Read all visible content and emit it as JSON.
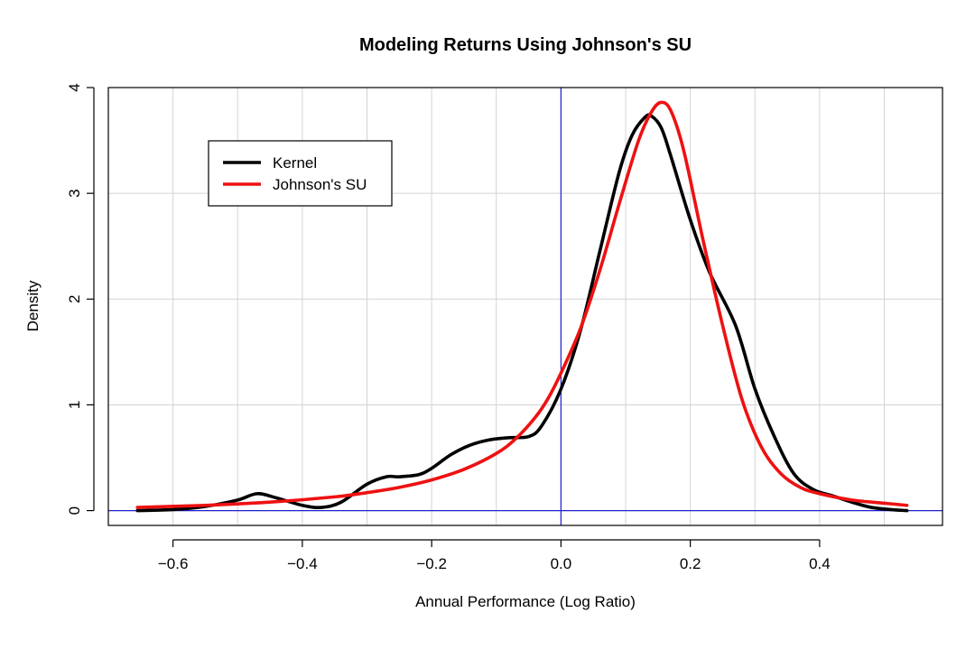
{
  "chart_data": {
    "type": "line",
    "title": "Modeling Returns Using Johnson's SU",
    "xlabel": "Annual Performance (Log Ratio)",
    "ylabel": "Density",
    "xlim": [
      -0.7,
      0.59
    ],
    "ylim": [
      -0.14,
      4.0
    ],
    "x_ticks": [
      -0.6,
      -0.4,
      -0.2,
      0.0,
      0.2,
      0.4
    ],
    "x_tick_labels": [
      "−0.6",
      "−0.4",
      "−0.2",
      "0.0",
      "0.2",
      "0.4"
    ],
    "y_ticks": [
      0,
      1,
      2,
      3,
      4
    ],
    "y_tick_labels": [
      "0",
      "1",
      "2",
      "3",
      "4"
    ],
    "x_grid": [
      -0.7,
      -0.6,
      -0.5,
      -0.4,
      -0.3,
      -0.2,
      -0.1,
      0.0,
      0.1,
      0.2,
      0.3,
      0.4,
      0.5
    ],
    "grid": true,
    "reference_lines": {
      "vertical_x": 0.0,
      "horizontal_y": 0.0,
      "color": "#2020d0"
    },
    "legend_position": "top-left",
    "series": [
      {
        "name": "Kernel",
        "color": "#000000",
        "x": [
          -0.655,
          -0.6,
          -0.55,
          -0.5,
          -0.47,
          -0.44,
          -0.4,
          -0.37,
          -0.34,
          -0.3,
          -0.27,
          -0.25,
          -0.22,
          -0.2,
          -0.17,
          -0.14,
          -0.11,
          -0.08,
          -0.05,
          -0.03,
          0.0,
          0.03,
          0.06,
          0.09,
          0.11,
          0.13,
          0.14,
          0.155,
          0.17,
          0.2,
          0.23,
          0.27,
          0.3,
          0.33,
          0.36,
          0.39,
          0.42,
          0.45,
          0.48,
          0.51,
          0.535
        ],
        "y": [
          0.0,
          0.01,
          0.04,
          0.1,
          0.16,
          0.12,
          0.05,
          0.03,
          0.08,
          0.25,
          0.32,
          0.32,
          0.34,
          0.4,
          0.53,
          0.62,
          0.67,
          0.69,
          0.7,
          0.8,
          1.15,
          1.7,
          2.45,
          3.2,
          3.55,
          3.72,
          3.73,
          3.62,
          3.35,
          2.75,
          2.25,
          1.75,
          1.15,
          0.7,
          0.35,
          0.2,
          0.14,
          0.08,
          0.03,
          0.01,
          0.0
        ]
      },
      {
        "name": "Johnson's SU",
        "color": "#ee1111",
        "x": [
          -0.655,
          -0.55,
          -0.45,
          -0.35,
          -0.3,
          -0.25,
          -0.2,
          -0.15,
          -0.1,
          -0.07,
          -0.04,
          -0.02,
          0.0,
          0.03,
          0.06,
          0.09,
          0.12,
          0.14,
          0.155,
          0.17,
          0.19,
          0.22,
          0.25,
          0.28,
          0.31,
          0.34,
          0.37,
          0.4,
          0.45,
          0.5,
          0.535
        ],
        "y": [
          0.03,
          0.05,
          0.08,
          0.13,
          0.17,
          0.22,
          0.29,
          0.39,
          0.54,
          0.68,
          0.88,
          1.06,
          1.3,
          1.72,
          2.27,
          2.9,
          3.5,
          3.77,
          3.86,
          3.78,
          3.4,
          2.55,
          1.75,
          1.05,
          0.6,
          0.35,
          0.22,
          0.16,
          0.1,
          0.07,
          0.05
        ]
      }
    ]
  }
}
